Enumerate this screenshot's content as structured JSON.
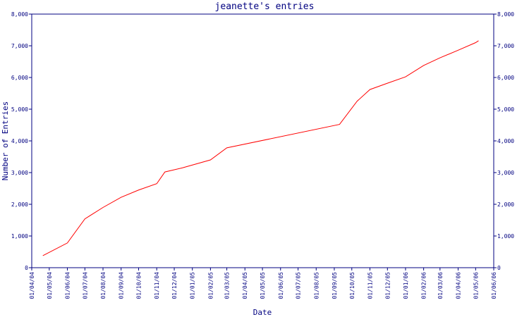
{
  "chart_data": {
    "type": "line",
    "title": "jeanette's entries",
    "xlabel": "Date",
    "ylabel": "Number of Entries",
    "ylim": [
      0,
      8000
    ],
    "yticks": [
      0,
      1000,
      2000,
      3000,
      4000,
      5000,
      6000,
      7000,
      8000
    ],
    "ytick_labels": [
      "0",
      "1,000",
      "2,000",
      "3,000",
      "4,000",
      "5,000",
      "6,000",
      "7,000",
      "8,000"
    ],
    "xlim": [
      "2004-04-01",
      "2006-06-01"
    ],
    "xtick_labels": [
      "01/04/04",
      "01/05/04",
      "01/06/04",
      "01/07/04",
      "01/08/04",
      "01/09/04",
      "01/10/04",
      "01/11/04",
      "01/12/04",
      "01/01/05",
      "01/02/05",
      "01/03/05",
      "01/04/05",
      "01/05/05",
      "01/06/05",
      "01/07/05",
      "01/08/05",
      "01/09/05",
      "01/10/05",
      "01/11/05",
      "01/12/05",
      "01/01/06",
      "01/02/06",
      "01/03/06",
      "01/04/06",
      "01/05/06",
      "01/06/06"
    ],
    "grid": false,
    "colors": {
      "line": "#ff0000",
      "axis": "#000080",
      "text": "#000080"
    },
    "series": [
      {
        "x": [
          "2004-04-20",
          "2004-06-01",
          "2004-07-01",
          "2004-08-01",
          "2004-09-01",
          "2004-10-01",
          "2004-11-01",
          "2004-11-15",
          "2004-12-15",
          "2005-02-01",
          "2005-03-01",
          "2005-09-10",
          "2005-10-10",
          "2005-11-01",
          "2005-12-01",
          "2006-01-01",
          "2006-02-01",
          "2006-03-01",
          "2006-04-01",
          "2006-05-01",
          "2006-05-06"
        ],
        "y": [
          380,
          780,
          1540,
          1900,
          2220,
          2450,
          2650,
          3020,
          3150,
          3400,
          3780,
          4520,
          5250,
          5620,
          5820,
          6020,
          6380,
          6620,
          6860,
          7100,
          7160
        ]
      }
    ]
  }
}
